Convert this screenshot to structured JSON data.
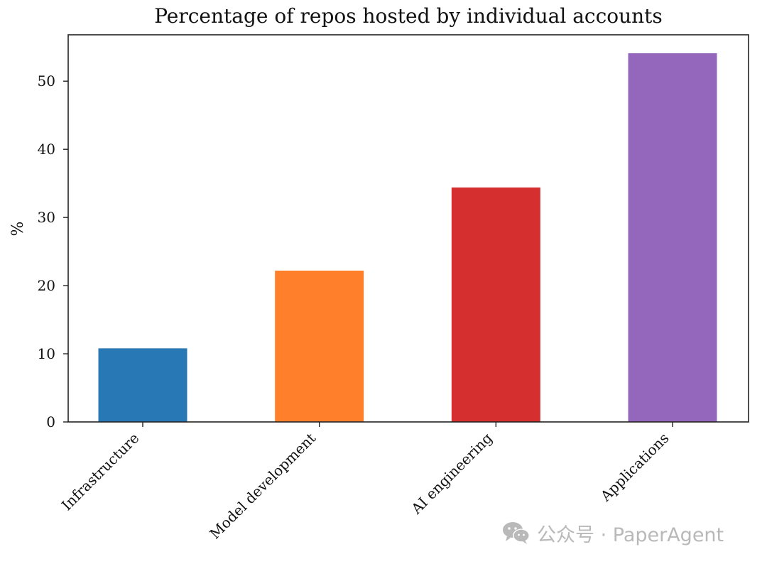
{
  "chart_data": {
    "type": "bar",
    "title": "Percentage of repos hosted by individual accounts",
    "xlabel": "",
    "ylabel": "%",
    "categories": [
      "Infrastructure",
      "Model development",
      "AI engineering",
      "Applications"
    ],
    "values": [
      10.8,
      22.2,
      34.4,
      54.1
    ],
    "colors": [
      "#2878b5",
      "#ff7f2a",
      "#d62f2f",
      "#9467bd"
    ],
    "ylim": [
      0,
      56.8
    ],
    "yticks": [
      0,
      10,
      20,
      30,
      40,
      50
    ],
    "grid": false,
    "legend": "none"
  },
  "watermark": {
    "text": "公众号 · PaperAgent",
    "icon": "wechat-icon"
  }
}
